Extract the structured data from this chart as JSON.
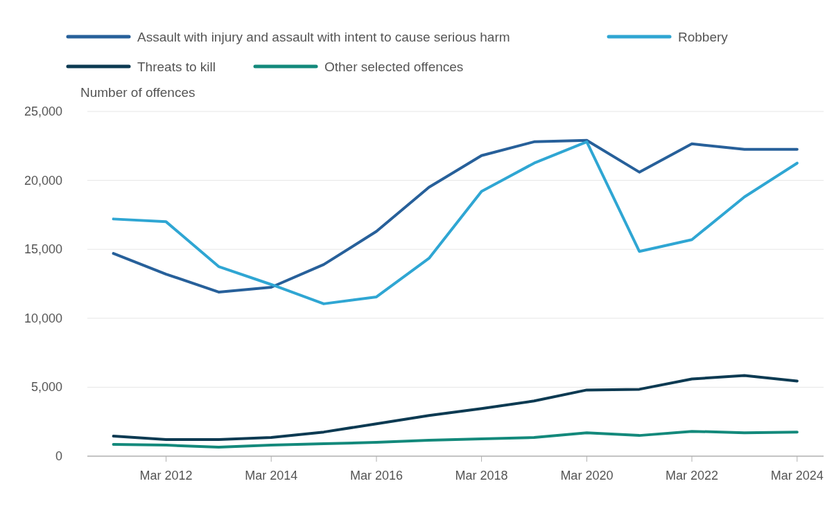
{
  "chart_data": {
    "type": "line",
    "ylabel": "Number of offences",
    "x": [
      "2011-03",
      "2012-03",
      "2013-03",
      "2014-03",
      "2015-03",
      "2016-03",
      "2017-03",
      "2018-03",
      "2019-03",
      "2020-03",
      "2021-03",
      "2022-03",
      "2023-03",
      "2024-03"
    ],
    "series": [
      {
        "name": "Assault with injury and assault with intent to cause serious harm",
        "color": "#27609a",
        "values": [
          14700,
          13200,
          11900,
          12250,
          13900,
          16300,
          19500,
          21800,
          22800,
          22900,
          20600,
          22650,
          22250,
          22250
        ]
      },
      {
        "name": "Robbery",
        "color": "#2fa6d3",
        "values": [
          17200,
          17000,
          13750,
          12450,
          11050,
          11550,
          14350,
          19200,
          21250,
          22800,
          14850,
          15700,
          18800,
          21250
        ]
      },
      {
        "name": "Threats to kill",
        "color": "#0c3a52",
        "values": [
          1450,
          1200,
          1200,
          1350,
          1750,
          2350,
          2950,
          3450,
          4000,
          4800,
          4850,
          5600,
          5850,
          5450
        ]
      },
      {
        "name": "Other selected offences",
        "color": "#13897b",
        "values": [
          850,
          800,
          650,
          800,
          900,
          1000,
          1150,
          1250,
          1350,
          1700,
          1500,
          1800,
          1700,
          1750
        ]
      }
    ],
    "xlim": [
      "2010-09",
      "2024-09"
    ],
    "xticks": [
      {
        "value": "2012-03",
        "label": "Mar 2012"
      },
      {
        "value": "2014-03",
        "label": "Mar 2014"
      },
      {
        "value": "2016-03",
        "label": "Mar 2016"
      },
      {
        "value": "2018-03",
        "label": "Mar 2018"
      },
      {
        "value": "2020-03",
        "label": "Mar 2020"
      },
      {
        "value": "2022-03",
        "label": "Mar 2022"
      },
      {
        "value": "2024-03",
        "label": "Mar 2024"
      }
    ],
    "ylim": [
      0,
      25000
    ],
    "yticks": [
      0,
      {
        "value": 5000,
        "label": "5,000"
      },
      {
        "value": 10000,
        "label": "10,000"
      },
      {
        "value": 15000,
        "label": "15,000"
      },
      {
        "value": 20000,
        "label": "20,000"
      },
      {
        "value": 25000,
        "label": "25,000"
      }
    ],
    "grid": "y",
    "legend": "top left",
    "marker": "none",
    "line_style": "solid"
  }
}
